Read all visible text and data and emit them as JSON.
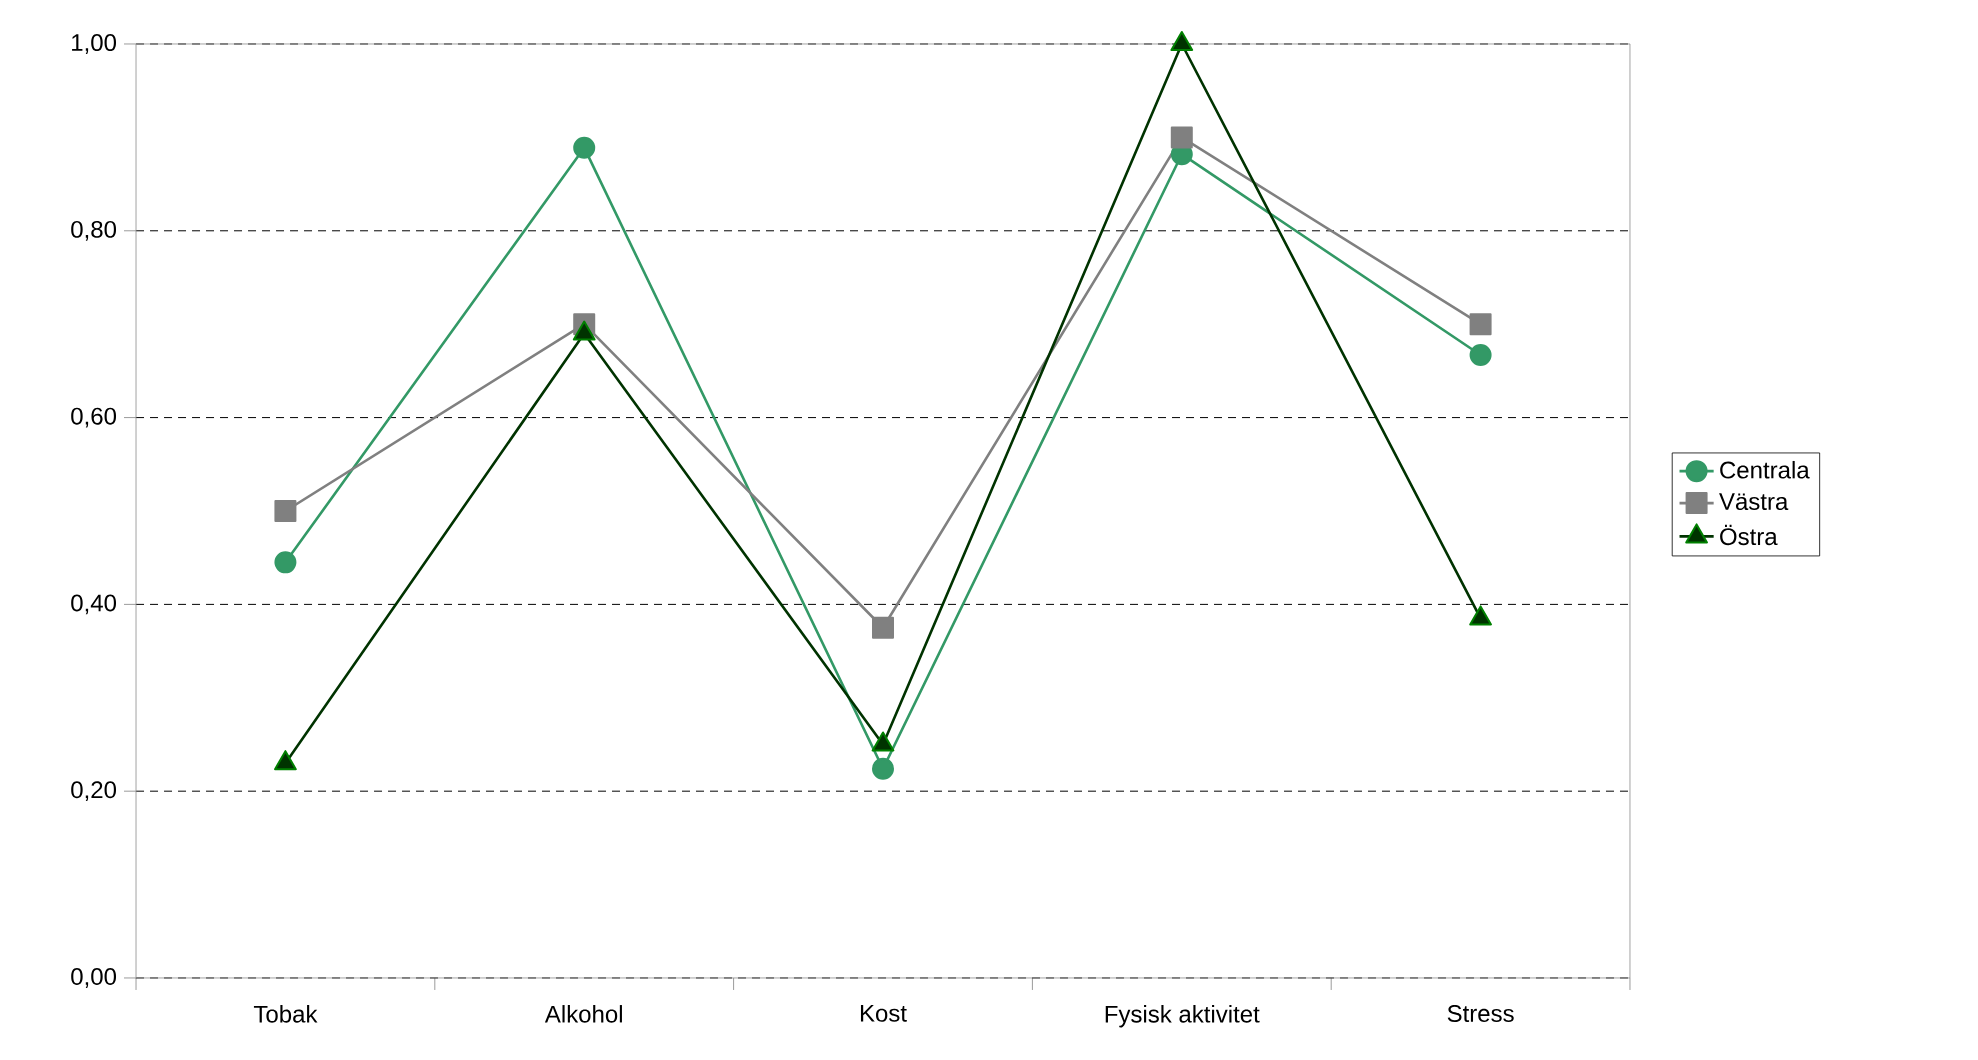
{
  "chart_data": {
    "type": "line",
    "categories": [
      "Tobak",
      "Alkohol",
      "Kost",
      "Fysisk aktivitet",
      "Stress"
    ],
    "series": [
      {
        "name": "Centrala",
        "color": "#339966",
        "marker": "circle",
        "values": [
          0.445,
          0.889,
          0.224,
          0.882,
          0.667
        ]
      },
      {
        "name": "Västra",
        "color": "#808080",
        "marker": "square",
        "values": [
          0.5,
          0.7,
          0.375,
          0.9,
          0.7
        ]
      },
      {
        "name": "Östra",
        "color": "#003300",
        "marker": "triangle",
        "values": [
          0.23,
          0.69,
          0.25,
          1.0,
          0.385
        ]
      }
    ],
    "ylim": [
      0,
      1
    ],
    "yticks": [
      {
        "value": 0,
        "label": "0,00"
      },
      {
        "value": 0.2,
        "label": "0,20"
      },
      {
        "value": 0.4,
        "label": "0,40"
      },
      {
        "value": 0.6,
        "label": "0,60"
      },
      {
        "value": 0.8,
        "label": "0,80"
      },
      {
        "value": 1,
        "label": "1,00"
      }
    ],
    "grid": "y",
    "legend": "right",
    "line_style": "solid"
  }
}
